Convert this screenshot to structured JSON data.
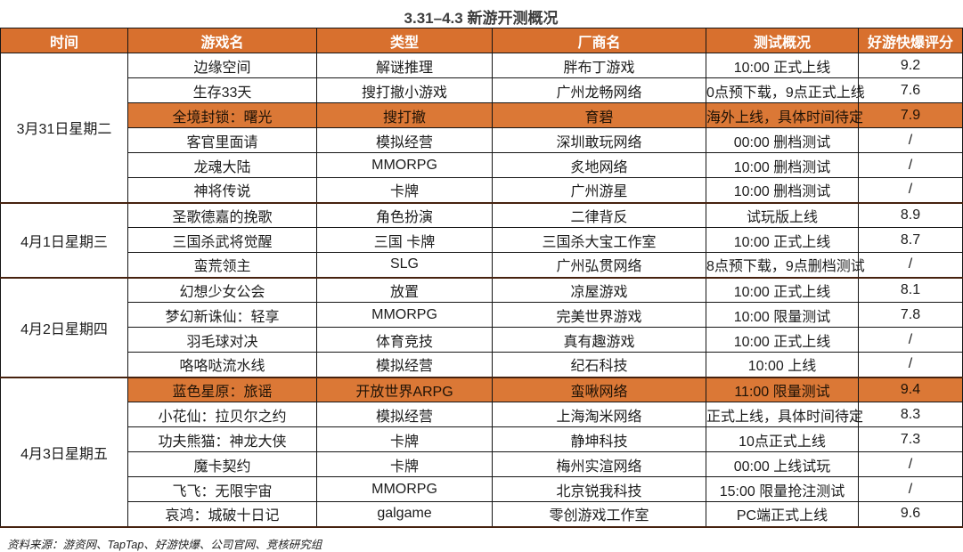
{
  "title": "3.31–4.3 新游开测概况",
  "source_note": "资料来源：游资网、TapTap、好游快爆、公司官网、竞核研究组",
  "colors": {
    "header_bg": "#d8702e",
    "highlight_bg": "#db7836",
    "border": "#151515",
    "group_border": "#46220f"
  },
  "table": {
    "headers": [
      "时间",
      "游戏名",
      "类型",
      "厂商名",
      "测试概况",
      "好游快爆评分"
    ],
    "groups": [
      {
        "date": "3月31日星期二",
        "rows": [
          {
            "game": "边缘空间",
            "type": "解谜推理",
            "company": "胖布丁游戏",
            "test": "10:00 正式上线",
            "score": "9.2",
            "highlight": false
          },
          {
            "game": "生存33天",
            "type": "搜打撤小游戏",
            "company": "广州龙畅网络",
            "test": "0点预下载，9点正式上线",
            "score": "7.6",
            "highlight": false
          },
          {
            "game": "全境封锁：曙光",
            "type": "搜打撤",
            "company": "育碧",
            "test": "海外上线，具体时间待定",
            "score": "7.9",
            "highlight": true
          },
          {
            "game": "客官里面请",
            "type": "模拟经营",
            "company": "深圳敢玩网络",
            "test": "00:00 删档测试",
            "score": "/",
            "highlight": false
          },
          {
            "game": "龙魂大陆",
            "type": "MMORPG",
            "company": "炙地网络",
            "test": "10:00 删档测试",
            "score": "/",
            "highlight": false
          },
          {
            "game": "神将传说",
            "type": "卡牌",
            "company": "广州游星",
            "test": "10:00 删档测试",
            "score": "/",
            "highlight": false
          }
        ]
      },
      {
        "date": "4月1日星期三",
        "rows": [
          {
            "game": "圣歌德嘉的挽歌",
            "type": "角色扮演",
            "company": "二律背反",
            "test": "试玩版上线",
            "score": "8.9",
            "highlight": false
          },
          {
            "game": "三国杀武将觉醒",
            "type": "三国 卡牌",
            "company": "三国杀大宝工作室",
            "test": "10:00 正式上线",
            "score": "8.7",
            "highlight": false
          },
          {
            "game": "蛮荒领主",
            "type": "SLG",
            "company": "广州弘贯网络",
            "test": "8点预下载，9点删档测试",
            "score": "/",
            "highlight": false
          }
        ]
      },
      {
        "date": "4月2日星期四",
        "rows": [
          {
            "game": "幻想少女公会",
            "type": "放置",
            "company": "凉屋游戏",
            "test": "10:00 正式上线",
            "score": "8.1",
            "highlight": false
          },
          {
            "game": "梦幻新诛仙：轻享",
            "type": "MMORPG",
            "company": "完美世界游戏",
            "test": "10:00 限量测试",
            "score": "7.8",
            "highlight": false
          },
          {
            "game": "羽毛球对决",
            "type": "体育竞技",
            "company": "真有趣游戏",
            "test": "10:00 正式上线",
            "score": "/",
            "highlight": false
          },
          {
            "game": "咯咯哒流水线",
            "type": "模拟经营",
            "company": "纪石科技",
            "test": "10:00 上线",
            "score": "/",
            "highlight": false
          }
        ]
      },
      {
        "date": "4月3日星期五",
        "rows": [
          {
            "game": "蓝色星原：旅谣",
            "type": "开放世界ARPG",
            "company": "蛮啾网络",
            "test": "11:00 限量测试",
            "score": "9.4",
            "highlight": true
          },
          {
            "game": "小花仙：拉贝尔之约",
            "type": "模拟经营",
            "company": "上海淘米网络",
            "test": "正式上线，具体时间待定",
            "score": "8.3",
            "highlight": false
          },
          {
            "game": "功夫熊猫：神龙大侠",
            "type": "卡牌",
            "company": "静坤科技",
            "test": "10点正式上线",
            "score": "7.3",
            "highlight": false
          },
          {
            "game": "魔卡契约",
            "type": "卡牌",
            "company": "梅州实渲网络",
            "test": "00:00 上线试玩",
            "score": "/",
            "highlight": false
          },
          {
            "game": "飞飞：无限宇宙",
            "type": "MMORPG",
            "company": "北京锐我科技",
            "test": "15:00 限量抢注测试",
            "score": "/",
            "highlight": false
          },
          {
            "game": "哀鸿：城破十日记",
            "type": "galgame",
            "company": "零创游戏工作室",
            "test": "PC端正式上线",
            "score": "9.6",
            "highlight": false
          }
        ]
      }
    ]
  }
}
